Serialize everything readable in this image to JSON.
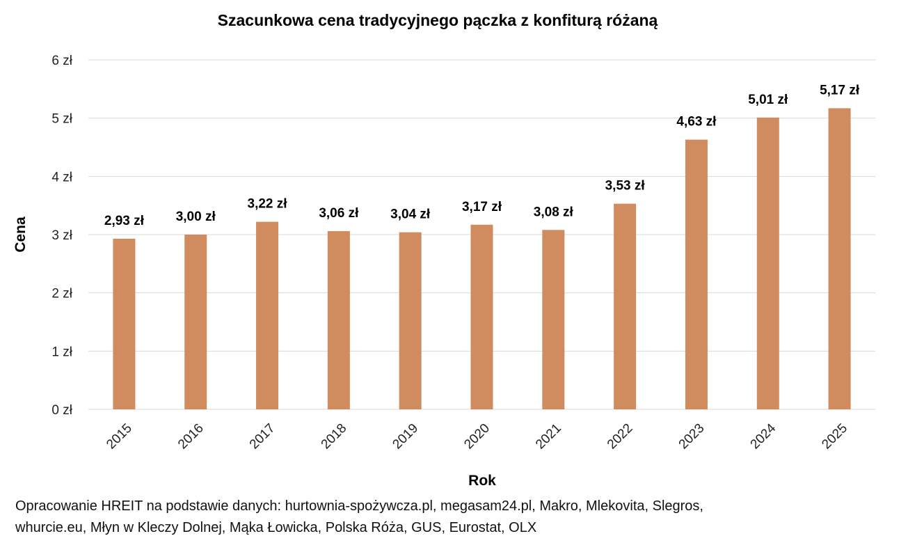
{
  "chart_data": {
    "type": "bar",
    "title": "Szacunkowa cena tradycyjnego pączka z konfiturą różaną",
    "xlabel": "Rok",
    "ylabel": "Cena",
    "categories": [
      "2015",
      "2016",
      "2017",
      "2018",
      "2019",
      "2020",
      "2021",
      "2022",
      "2023",
      "2024",
      "2025"
    ],
    "values": [
      2.93,
      3.0,
      3.22,
      3.06,
      3.04,
      3.17,
      3.08,
      3.53,
      4.63,
      5.01,
      5.17
    ],
    "data_labels": [
      "2,93 zł",
      "3,00 zł",
      "3,22 zł",
      "3,06 zł",
      "3,04 zł",
      "3,17 zł",
      "3,08 zł",
      "3,53 zł",
      "4,63 zł",
      "5,01 zł",
      "5,17 zł"
    ],
    "ylim": [
      0,
      6
    ],
    "yticks": [
      0,
      1,
      2,
      3,
      4,
      5,
      6
    ],
    "ytick_labels": [
      "0 zł",
      "1 zł",
      "2 zł",
      "3 zł",
      "4 zł",
      "5 zł",
      "6 zł"
    ],
    "x_tick_rotation": -45,
    "grid": true,
    "legend": false,
    "bar_color": "#D08C5E",
    "grid_color": "#D9D9D9"
  },
  "source_note": {
    "line1": "Opracowanie HREIT na podstawie danych: hurtownia-spożywcza.pl, megasam24.pl, Makro, Mlekovita, Slegros,",
    "line2": "whurcie.eu, Młyn w Kleczy Dolnej, Mąka Łowicka, Polska Róża, GUS, Eurostat, OLX"
  }
}
